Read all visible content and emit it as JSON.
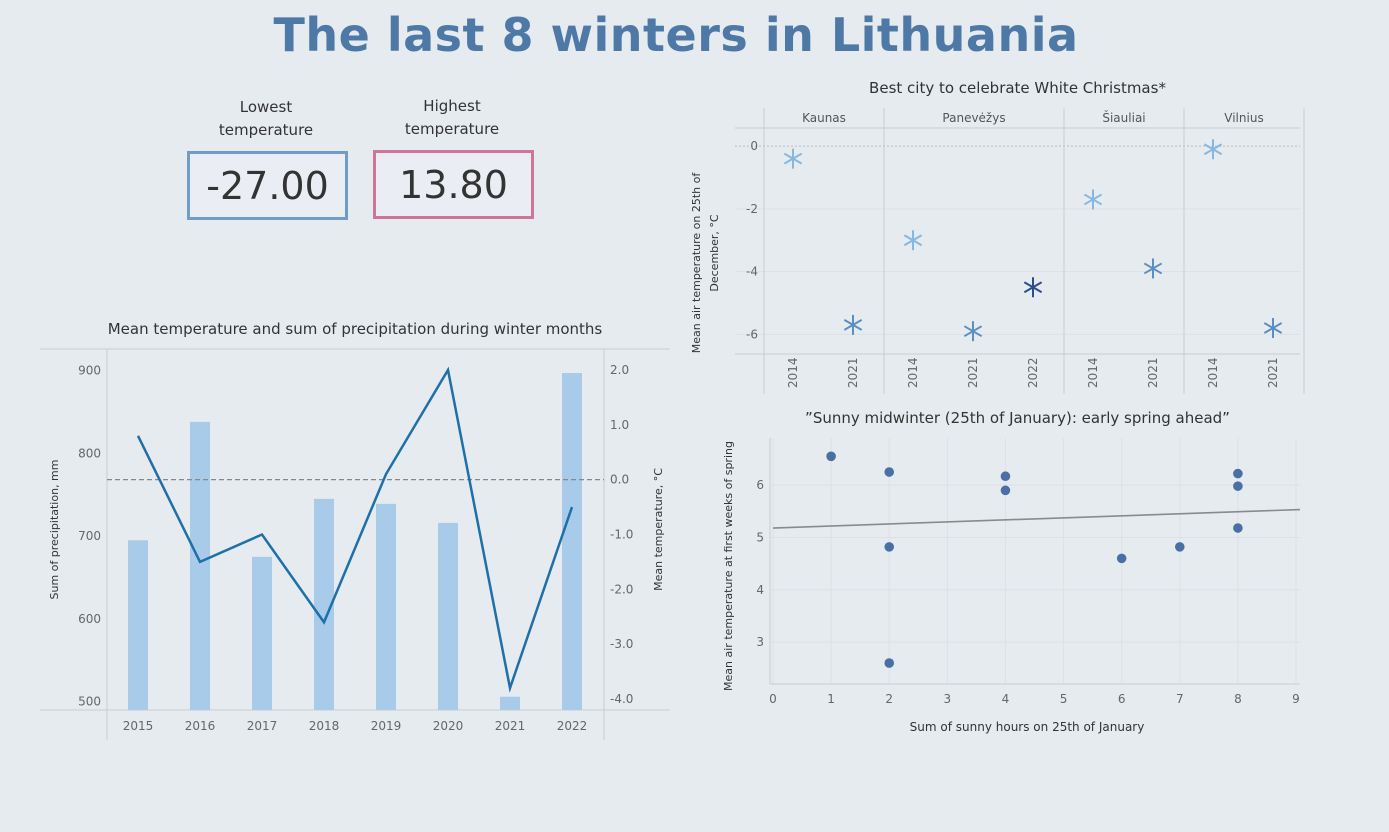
{
  "header": {
    "title": "The last 8 winters in Lithuania"
  },
  "kpis": {
    "lowest": {
      "label_line1": "Lowest",
      "label_line2": "temperature",
      "value": "-27.00"
    },
    "highest": {
      "label_line1": "Highest",
      "label_line2": "temperature",
      "value": "13.80"
    }
  },
  "colors": {
    "title": "#4e79a7",
    "bar": "#a7cbe8",
    "line": "#1f6fa8",
    "star_light": "#85b8e0",
    "star_mid": "#5a8fc4",
    "star_dark": "#2a4f8c",
    "dot": "#4a6fa5",
    "trend": "#8a8a8a",
    "low_border": "#6f9cc8",
    "high_border": "#cf7595"
  },
  "chart_data": [
    {
      "id": "winter-combo",
      "type": "bar",
      "title": "Mean temperature and sum of precipitation during winter months",
      "categories": [
        "2015",
        "2016",
        "2017",
        "2018",
        "2019",
        "2020",
        "2021",
        "2022"
      ],
      "series": [
        {
          "type": "bar",
          "axis": "left",
          "values": [
            695,
            838,
            675,
            745,
            739,
            716,
            506,
            897
          ]
        },
        {
          "type": "line",
          "axis": "right",
          "values": [
            0.8,
            -1.5,
            -1.0,
            -2.6,
            0.1,
            2.0,
            -3.8,
            -0.5
          ]
        }
      ],
      "ylabel": "Sum of precipitation, mm",
      "ylim": [
        490,
        920
      ],
      "yticks": [
        500,
        600,
        700,
        800,
        900
      ],
      "y2label": "Mean temperature, °C",
      "y2lim": [
        -4.2,
        2.2
      ],
      "y2ticks": [
        "2.0",
        "1.0",
        "0.0",
        "-1.0",
        "-2.0",
        "-3.0",
        "-4.0"
      ],
      "y2tick_values": [
        2.0,
        1.0,
        0.0,
        -1.0,
        -2.0,
        -3.0,
        -4.0
      ],
      "reference_line": {
        "axis": "right",
        "value": 0.0,
        "style": "dashed"
      }
    },
    {
      "id": "white-christmas",
      "type": "scatter",
      "title": "Best city to celebrate White Christmas*",
      "ylabel_line1": "Mean air temperature on 25th of",
      "ylabel_line2": "December, °C",
      "ylim": [
        -6.5,
        0.45
      ],
      "yticks": [
        0,
        -2,
        -4,
        -6
      ],
      "groups": [
        {
          "city": "Kaunas",
          "points": [
            {
              "year": "2014",
              "value": -0.4,
              "shade": "light"
            },
            {
              "year": "2021",
              "value": -5.7,
              "shade": "mid"
            }
          ]
        },
        {
          "city": "Panevėžys",
          "points": [
            {
              "year": "2014",
              "value": -3.0,
              "shade": "light"
            },
            {
              "year": "2021",
              "value": -5.9,
              "shade": "mid"
            },
            {
              "year": "2022",
              "value": -4.5,
              "shade": "dark"
            }
          ]
        },
        {
          "city": "Šiauliai",
          "points": [
            {
              "year": "2014",
              "value": -1.7,
              "shade": "light"
            },
            {
              "year": "2021",
              "value": -3.9,
              "shade": "mid"
            }
          ]
        },
        {
          "city": "Vilnius",
          "points": [
            {
              "year": "2014",
              "value": -0.1,
              "shade": "light"
            },
            {
              "year": "2021",
              "value": -5.8,
              "shade": "mid"
            }
          ]
        }
      ]
    },
    {
      "id": "sunny-midwinter",
      "type": "scatter",
      "title": "”Sunny midwinter (25th of January): early spring ahead”",
      "xlabel": "Sum of sunny hours on 25th of January",
      "ylabel": "Mean air temperature at first weeks of spring",
      "xlim": [
        0,
        9
      ],
      "ylim": [
        2.2,
        6.9
      ],
      "xticks": [
        0,
        1,
        2,
        3,
        4,
        5,
        6,
        7,
        8,
        9
      ],
      "yticks": [
        3,
        4,
        5,
        6
      ],
      "points": [
        {
          "x": 1,
          "y": 6.55
        },
        {
          "x": 2,
          "y": 6.25
        },
        {
          "x": 2,
          "y": 4.82
        },
        {
          "x": 2,
          "y": 2.6
        },
        {
          "x": 4,
          "y": 6.17
        },
        {
          "x": 4,
          "y": 5.9
        },
        {
          "x": 6,
          "y": 4.6
        },
        {
          "x": 7,
          "y": 4.82
        },
        {
          "x": 8,
          "y": 6.22
        },
        {
          "x": 8,
          "y": 5.98
        },
        {
          "x": 8,
          "y": 5.18
        }
      ],
      "trendline": {
        "x": [
          0,
          9
        ],
        "y": [
          5.18,
          5.53
        ]
      }
    }
  ]
}
